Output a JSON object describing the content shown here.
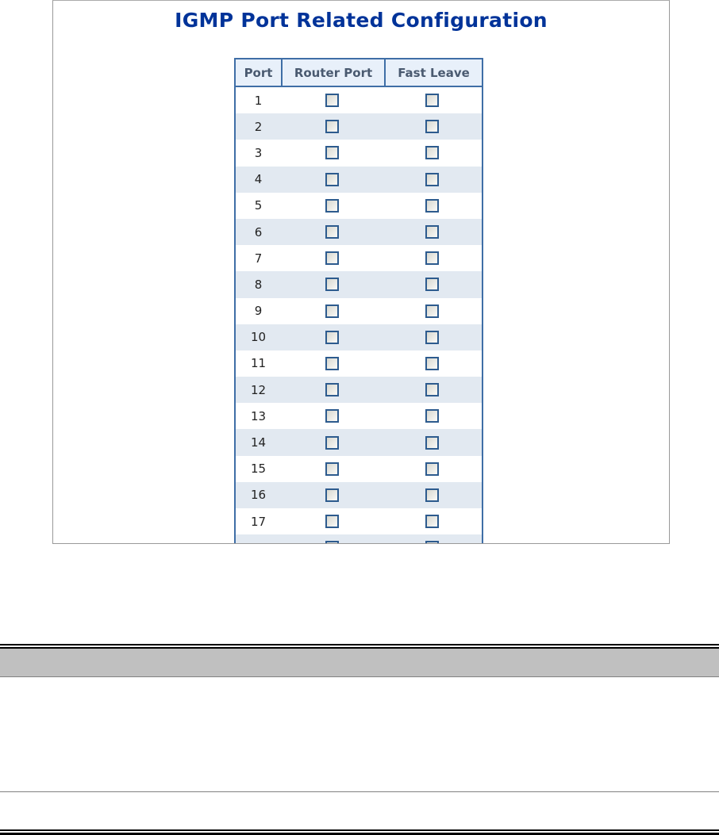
{
  "page": {
    "title": "IGMP Port Related Configuration",
    "accent_color": "#003399",
    "border_color": "#3f6ea6"
  },
  "table": {
    "headers": [
      "Port",
      "Router Port",
      "Fast Leave"
    ],
    "rows": [
      {
        "port": "1",
        "router_port": false,
        "fast_leave": false
      },
      {
        "port": "2",
        "router_port": false,
        "fast_leave": false
      },
      {
        "port": "3",
        "router_port": false,
        "fast_leave": false
      },
      {
        "port": "4",
        "router_port": false,
        "fast_leave": false
      },
      {
        "port": "5",
        "router_port": false,
        "fast_leave": false
      },
      {
        "port": "6",
        "router_port": false,
        "fast_leave": false
      },
      {
        "port": "7",
        "router_port": false,
        "fast_leave": false
      },
      {
        "port": "8",
        "router_port": false,
        "fast_leave": false
      },
      {
        "port": "9",
        "router_port": false,
        "fast_leave": false
      },
      {
        "port": "10",
        "router_port": false,
        "fast_leave": false
      },
      {
        "port": "11",
        "router_port": false,
        "fast_leave": false
      },
      {
        "port": "12",
        "router_port": false,
        "fast_leave": false
      },
      {
        "port": "13",
        "router_port": false,
        "fast_leave": false
      },
      {
        "port": "14",
        "router_port": false,
        "fast_leave": false
      },
      {
        "port": "15",
        "router_port": false,
        "fast_leave": false
      },
      {
        "port": "16",
        "router_port": false,
        "fast_leave": false
      },
      {
        "port": "17",
        "router_port": false,
        "fast_leave": false
      }
    ]
  }
}
